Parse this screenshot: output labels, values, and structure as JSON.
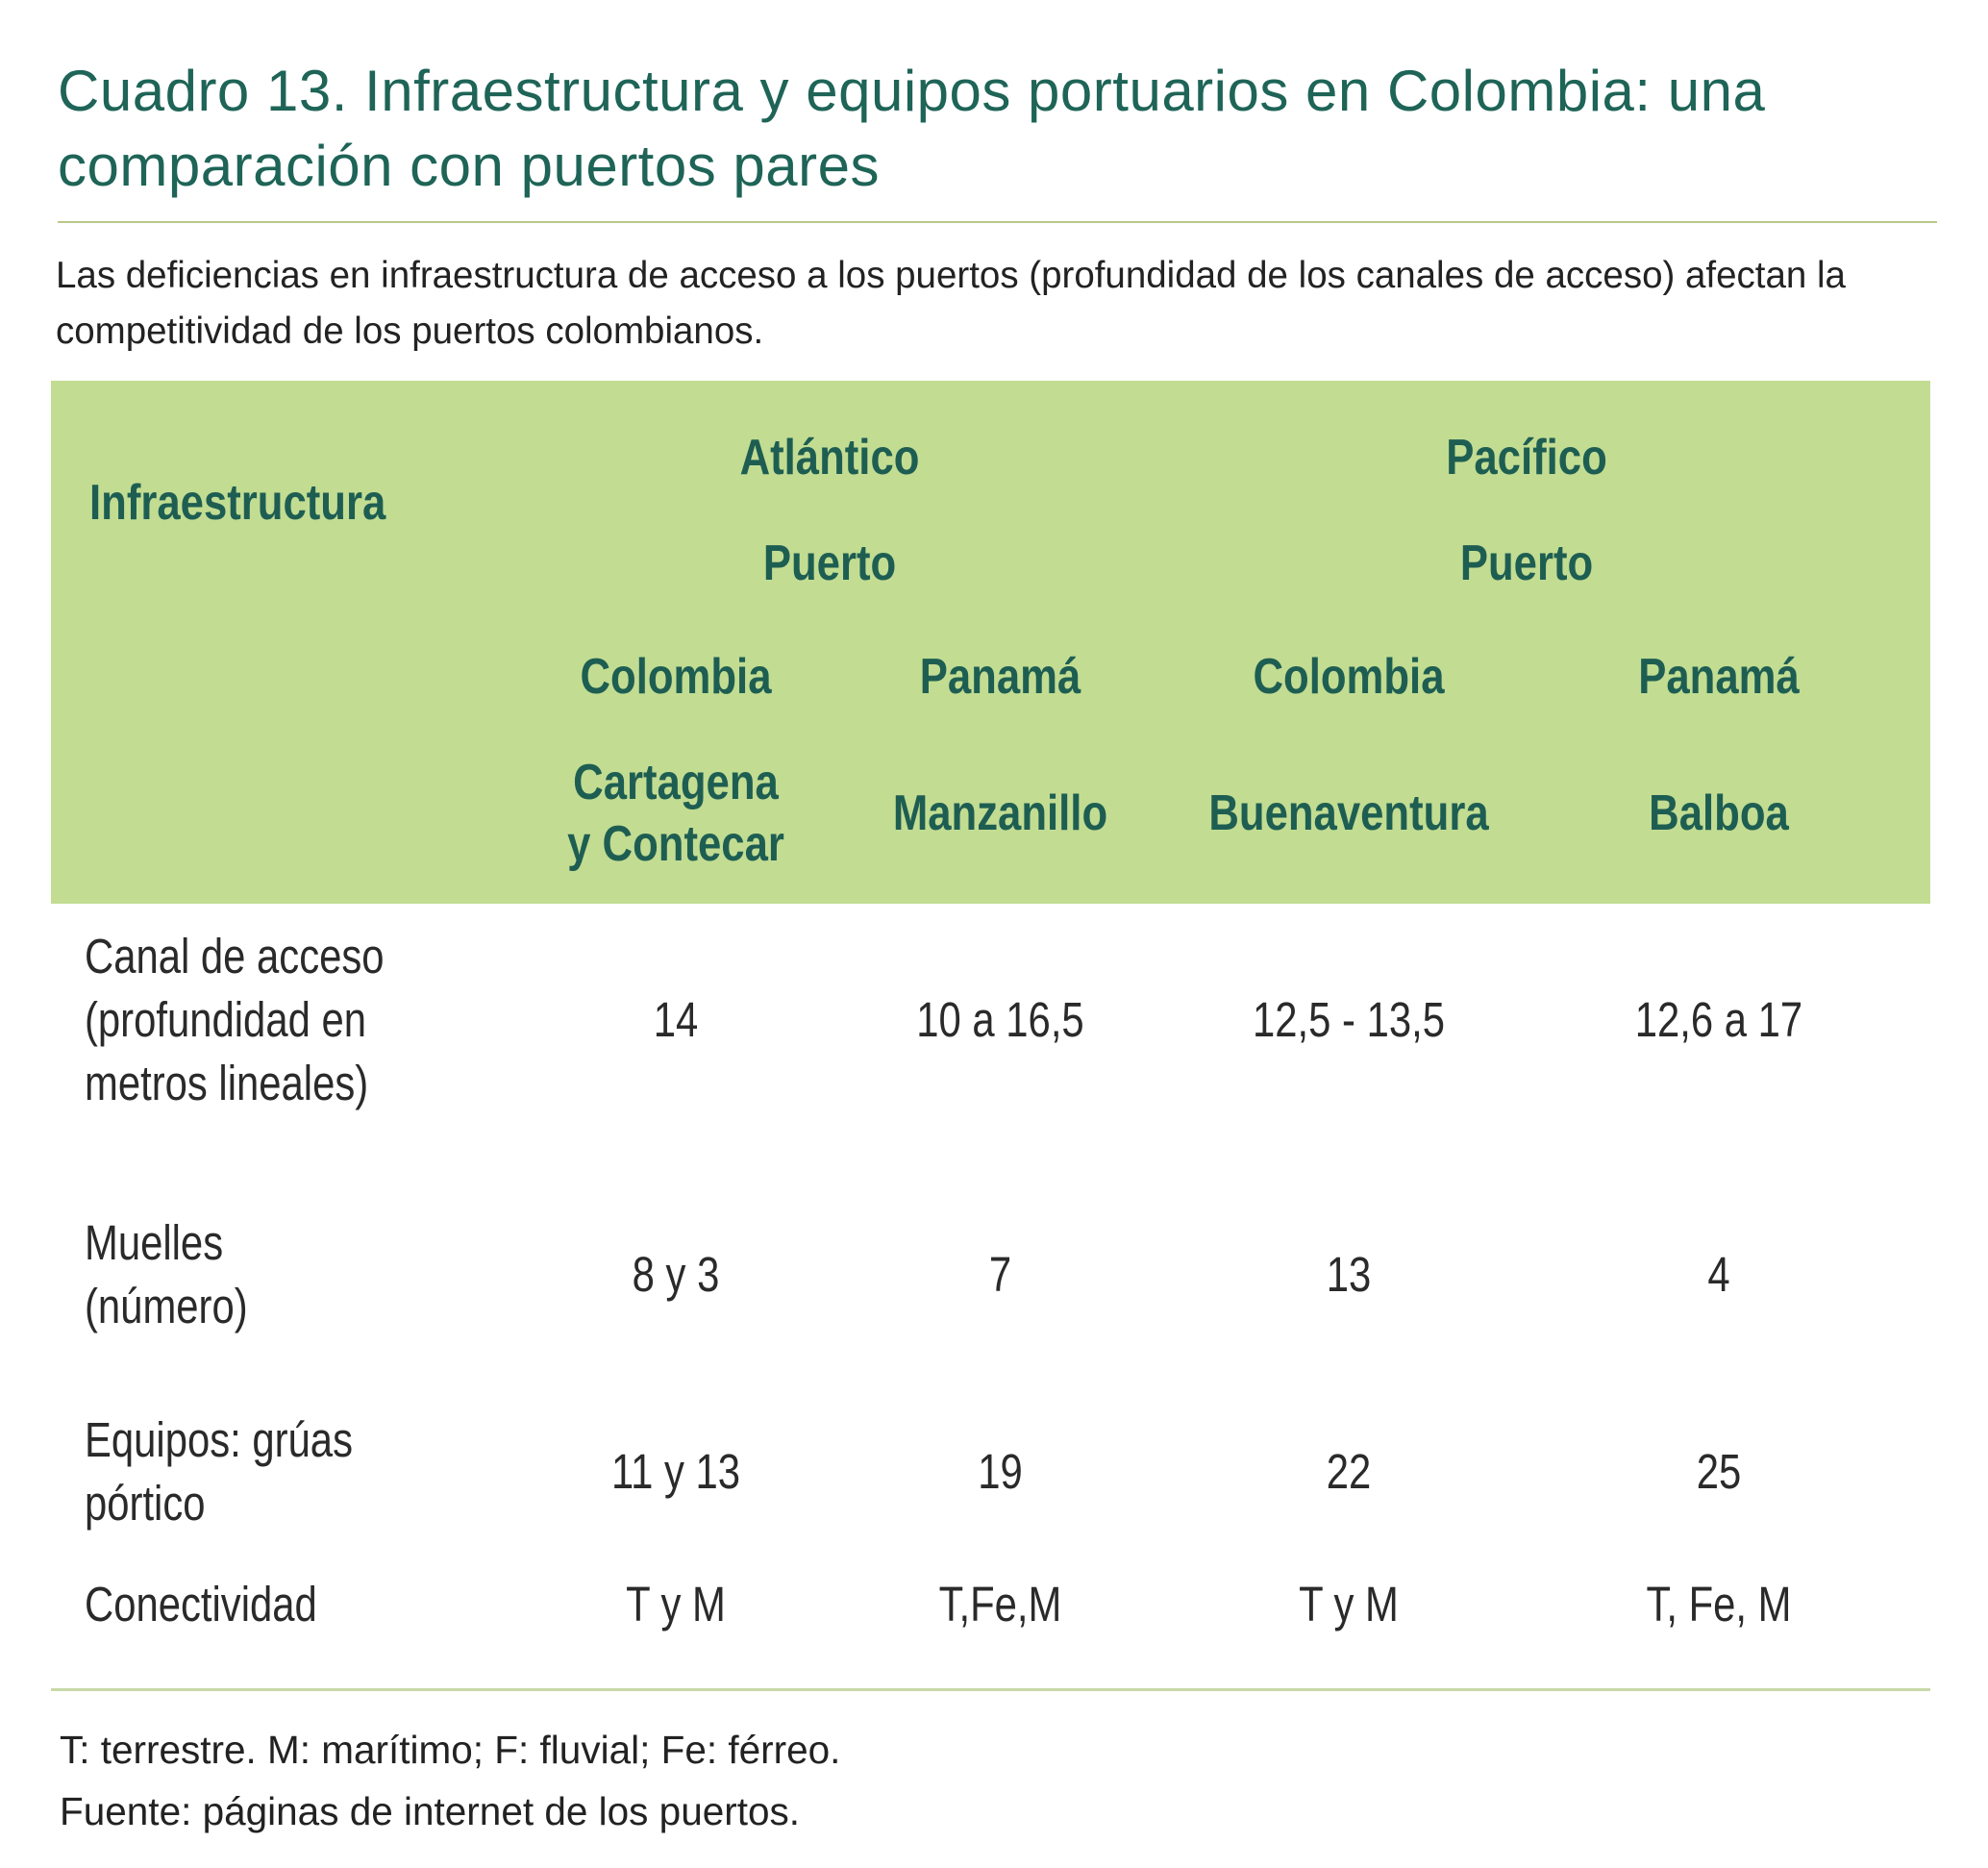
{
  "title": "Cuadro 13. Infraestructura y equipos portuarios en Colombia: una comparación con puertos pares",
  "subtitle": "Las deficiencias en infraestructura de acceso a los puertos (profundidad de los canales de acceso) afectan la competitividad de los puertos colombianos.",
  "colors": {
    "title": "#1e6457",
    "header_bg": "#c2dc92",
    "header_text": "#1e5e52",
    "rule": "#b9c98a"
  },
  "table": {
    "header": {
      "infra_label": "Infraestructura",
      "groups": [
        {
          "ocean": "Atlántico",
          "puerto": "Puerto"
        },
        {
          "ocean": "Pacífico",
          "puerto": "Puerto"
        }
      ],
      "countries": [
        "Colombia",
        "Panamá",
        "Colombia",
        "Panamá"
      ],
      "ports": [
        "Cartagena\ny Contecar",
        "Manzanillo",
        "Buenaventura",
        "Balboa"
      ]
    },
    "rows": [
      {
        "label": "Canal de acceso\n(profundidad en\nmetros lineales)",
        "values": [
          "14",
          "10 a 16,5",
          "12,5 - 13,5",
          "12,6 a 17"
        ]
      },
      {
        "label": "Muelles\n(número)",
        "values": [
          "8 y 3",
          "7",
          "13",
          "4"
        ]
      },
      {
        "label": "Equipos: grúas\npórtico",
        "values": [
          "11 y 13",
          "19",
          "22",
          "25"
        ]
      },
      {
        "label": "Conectividad",
        "values": [
          "T y M",
          "T,Fe,M",
          "T y M",
          "T, Fe, M"
        ]
      }
    ]
  },
  "notes": {
    "legend": "T: terrestre. M: marítimo; F: fluvial; Fe: férreo.",
    "source": "Fuente: páginas de internet de los puertos."
  }
}
